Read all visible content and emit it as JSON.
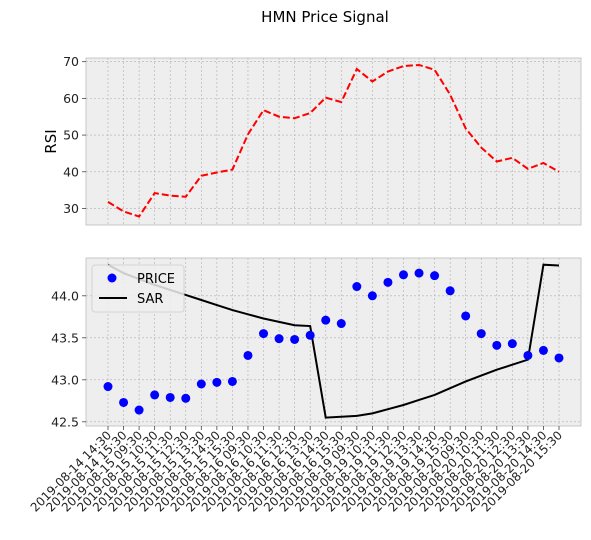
{
  "chart_data": {
    "title": "HMN Price Signal",
    "x": [
      "2019-08-14 14:30",
      "2019-08-14 15:30",
      "2019-08-15 09:30",
      "2019-08-15 10:30",
      "2019-08-15 11:30",
      "2019-08-15 12:30",
      "2019-08-15 13:30",
      "2019-08-15 14:30",
      "2019-08-15 15:30",
      "2019-08-16 09:30",
      "2019-08-16 10:30",
      "2019-08-16 11:30",
      "2019-08-16 12:30",
      "2019-08-16 13:30",
      "2019-08-16 14:30",
      "2019-08-16 15:30",
      "2019-08-19 09:30",
      "2019-08-19 10:30",
      "2019-08-19 11:30",
      "2019-08-19 12:30",
      "2019-08-19 13:30",
      "2019-08-19 14:30",
      "2019-08-19 15:30",
      "2019-08-20 09:30",
      "2019-08-20 10:30",
      "2019-08-20 11:30",
      "2019-08-20 12:30",
      "2019-08-20 13:30",
      "2019-08-20 14:30",
      "2019-08-20 15:30"
    ],
    "panels": [
      {
        "type": "line",
        "ylabel": "RSI",
        "ylim": [
          25.5,
          71
        ],
        "yticks": [
          30,
          40,
          50,
          60,
          70
        ],
        "grid": true,
        "series": [
          {
            "values": [
              31.8,
              29.2,
              27.8,
              34.2,
              33.5,
              33.2,
              38.9,
              39.8,
              40.6,
              50.2,
              56.8,
              55.0,
              54.6,
              56.0,
              60.2,
              59.0,
              68.0,
              64.6,
              67.3,
              68.8,
              69.1,
              67.8,
              61.0,
              51.8,
              46.6,
              42.8,
              43.8,
              40.8,
              42.4,
              40.0
            ],
            "color": "#ff0000",
            "style": "dashed"
          }
        ]
      },
      {
        "type": "scatter+line",
        "ylim": [
          42.45,
          44.45
        ],
        "yticks": [
          "42.5",
          "43.0",
          "43.5",
          "44.0"
        ],
        "grid": true,
        "legend": "top-left",
        "series": [
          {
            "name": "PRICE",
            "type": "scatter",
            "color": "#0000ff",
            "values": [
              42.92,
              42.73,
              42.64,
              42.82,
              42.79,
              42.78,
              42.95,
              42.97,
              42.98,
              43.29,
              43.55,
              43.49,
              43.48,
              43.53,
              43.71,
              43.67,
              44.11,
              44.0,
              44.16,
              44.25,
              44.27,
              44.24,
              44.06,
              43.76,
              43.55,
              43.41,
              43.43,
              43.29,
              43.35,
              43.26
            ]
          },
          {
            "name": "SAR",
            "type": "line",
            "color": "#000000",
            "values": [
              44.37,
              44.27,
              44.2,
              44.13,
              44.07,
              44.01,
              43.95,
              43.89,
              43.83,
              43.78,
              43.73,
              43.69,
              43.65,
              43.64,
              42.55,
              42.56,
              42.57,
              42.6,
              42.65,
              42.7,
              42.76,
              42.82,
              42.9,
              42.98,
              43.05,
              43.12,
              43.18,
              43.24,
              44.37,
              44.36
            ]
          }
        ]
      }
    ]
  }
}
